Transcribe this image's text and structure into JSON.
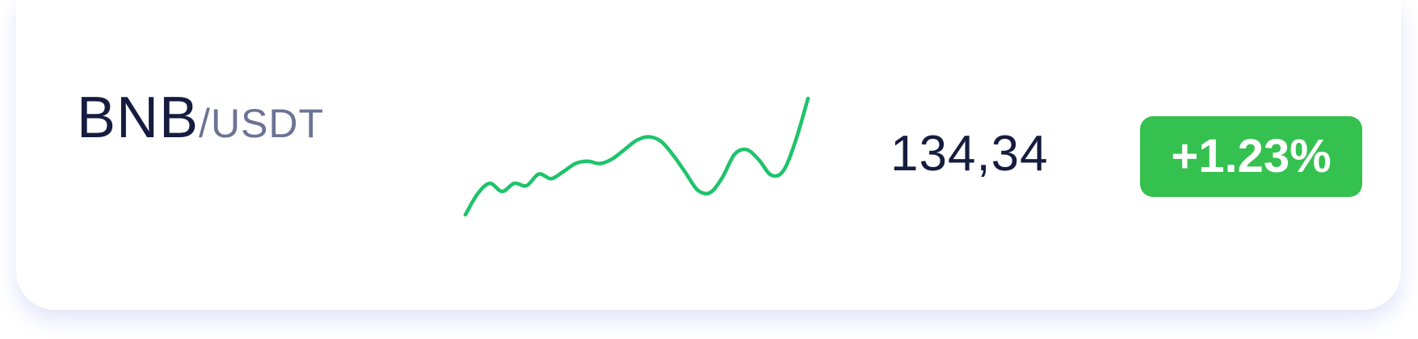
{
  "ticker": {
    "base": "BNB",
    "quote": "/USDT",
    "price": "134,34",
    "change": "+1.23%"
  },
  "colors": {
    "positive": "#35c14f",
    "sparkline": "#1ec36a",
    "primary_text": "#151c3f",
    "secondary_text": "#6c7395"
  },
  "sparkline": {
    "trend": "up",
    "values": [
      0,
      0.18,
      0.27,
      0.2,
      0.27,
      0.25,
      0.35,
      0.31,
      0.37,
      0.44,
      0.46,
      0.44,
      0.48,
      0.56,
      0.64,
      0.67,
      0.63,
      0.51,
      0.36,
      0.21,
      0.19,
      0.32,
      0.52,
      0.56,
      0.47,
      0.34,
      0.38,
      0.64,
      1
    ]
  }
}
